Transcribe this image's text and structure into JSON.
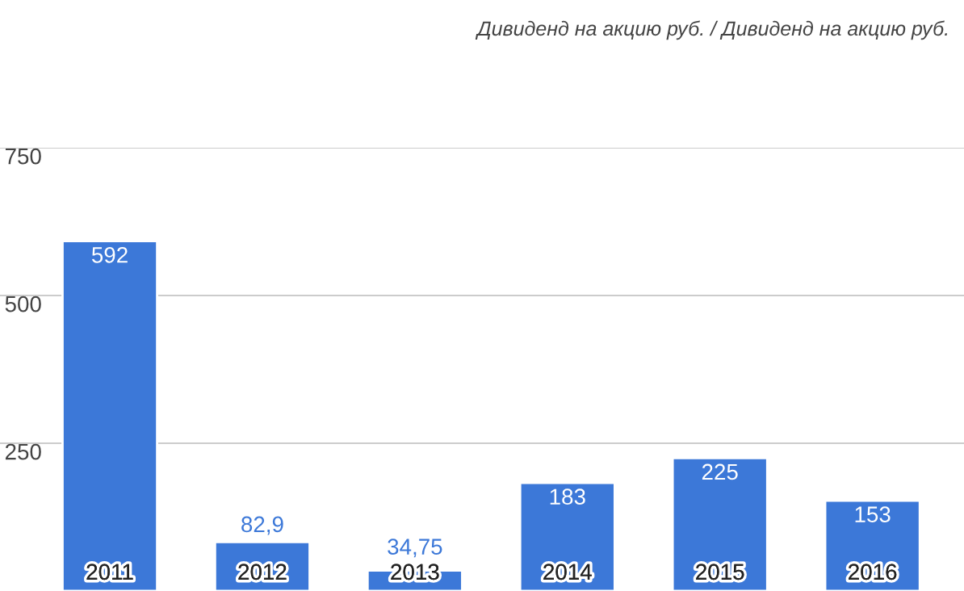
{
  "chart_data": {
    "type": "bar",
    "title": "Дивиденд на акцию руб. / Дивиденд на акцию руб.",
    "categories": [
      "2011",
      "2012",
      "2013",
      "2014",
      "2015",
      "2016"
    ],
    "values": [
      592,
      82.9,
      34.75,
      183,
      225,
      153
    ],
    "value_labels": [
      "592",
      "82,9",
      "34,75",
      "183",
      "225",
      "153"
    ],
    "color": "#3c78d8",
    "ylim": [
      0,
      750
    ],
    "yticks": [
      250,
      500,
      750
    ],
    "grid": "y"
  }
}
